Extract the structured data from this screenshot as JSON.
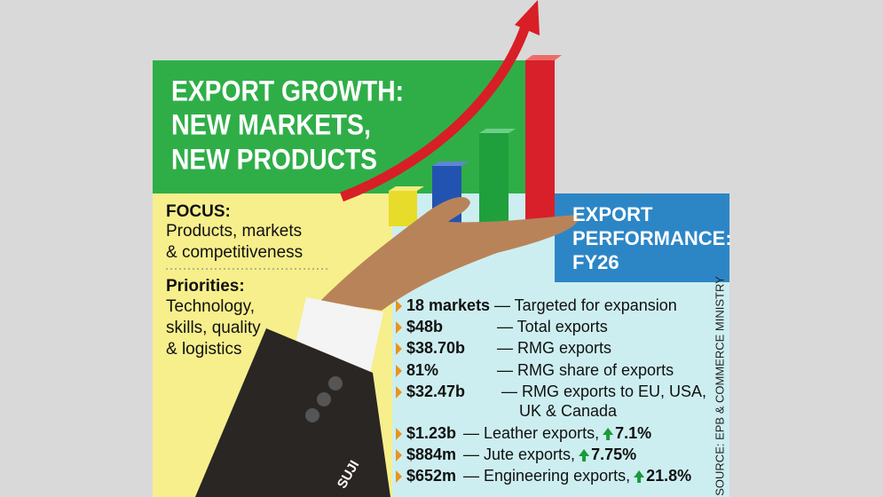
{
  "header": {
    "title_lines": [
      "EXPORT GROWTH:",
      "NEW MARKETS,",
      "NEW PRODUCTS"
    ]
  },
  "focus": {
    "label": "FOCUS:",
    "lines": [
      "Products, markets",
      "& competitiveness"
    ]
  },
  "priorities": {
    "label": "Priorities:",
    "lines": [
      "Technology,",
      "skills, quality",
      "& logistics"
    ]
  },
  "performance": {
    "title_lines": [
      "EXPORT",
      "PERFORMANCE:",
      "FY26"
    ],
    "items": [
      {
        "key": "18 markets",
        "desc": [
          "— Targeted for expansion"
        ]
      },
      {
        "key": "$48b",
        "desc": [
          "— Total exports"
        ]
      },
      {
        "key": "$38.70b",
        "desc": [
          "— RMG exports"
        ]
      },
      {
        "key": "81%",
        "desc": [
          "— RMG share of exports"
        ]
      },
      {
        "key": "$32.47b",
        "desc": [
          "— RMG exports to EU, USA,",
          "UK & Canada"
        ]
      },
      {
        "key": "$1.23b",
        "desc": [
          "—  Leather exports,"
        ],
        "change": "7.1%"
      },
      {
        "key": "$884m",
        "desc": [
          "—  Jute exports,"
        ],
        "change": "7.75%"
      },
      {
        "key": "$652m",
        "desc": [
          "—  Engineering exports,"
        ],
        "change": "21.8%"
      }
    ]
  },
  "source": "SOURCE: EPB & COMMERCE MINISTRY",
  "credit": "SUJI"
}
